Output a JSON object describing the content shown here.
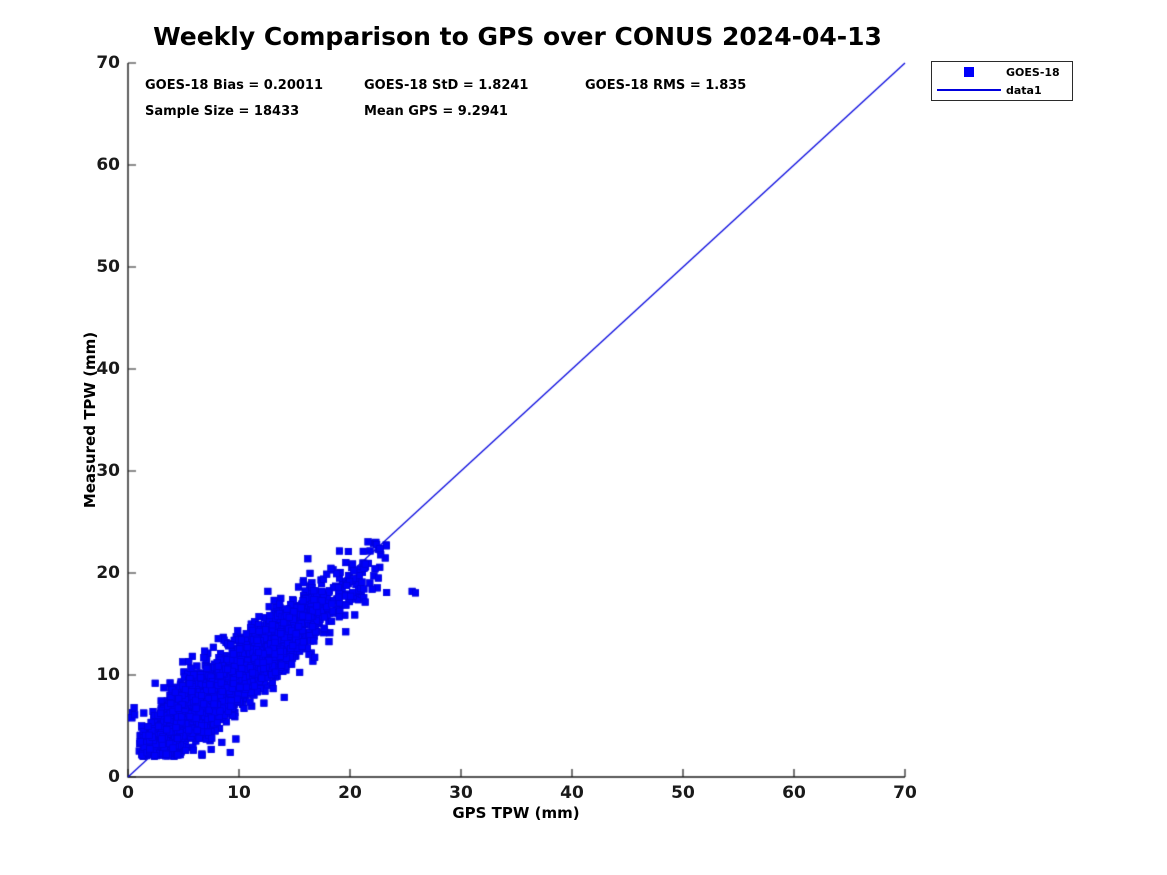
{
  "title": "Weekly Comparison to GPS over CONUS 2024-04-13",
  "annotations": {
    "bias": "GOES-18 Bias = 0.20011",
    "std": "GOES-18 StD = 1.8241",
    "rms": "GOES-18 RMS = 1.835",
    "sample_size": "Sample Size = 18433",
    "mean_gps": "Mean GPS = 9.2941"
  },
  "legend": {
    "items": [
      {
        "label": "GOES-18",
        "marker": "square",
        "color": "#0000fa"
      },
      {
        "label": "data1",
        "marker": "line",
        "color": "#0000dd"
      }
    ]
  },
  "colors": {
    "scatter_fill": "#0000fa",
    "scatter_edge": "#0000d0",
    "line": "#0000dd",
    "axis": "#1a1a1a",
    "background": "#ffffff"
  },
  "chart_data": {
    "type": "scatter",
    "title": "Weekly Comparison to GPS over CONUS 2024-04-13",
    "xlabel": "GPS TPW (mm)",
    "ylabel": "Measured TPW (mm)",
    "xlim": [
      0,
      70
    ],
    "ylim": [
      0,
      70
    ],
    "grid": false,
    "legend_position": "upper right outside plot",
    "xticks": [
      "0",
      "10",
      "20",
      "30",
      "40",
      "50",
      "60",
      "70"
    ],
    "yticks": [
      "0",
      "10",
      "20",
      "30",
      "40",
      "50",
      "60",
      "70"
    ],
    "stats": {
      "bias": 0.20011,
      "std": 1.8241,
      "rms": 1.835,
      "sample_size": 18433,
      "mean_gps": 9.2941
    },
    "series": [
      {
        "name": "GOES-18",
        "type": "scatter",
        "marker": "square",
        "color": "#0000fa",
        "marker_edge": "#0000d0",
        "marker_size_px": 7,
        "cluster": {
          "description": "Dense cloud of ~18433 points hugging the 1:1 line from (0,0) to (23,23)",
          "n_points_actual": 18433,
          "n_points_rendered": 3200,
          "seed": 20240413,
          "x_distribution": {
            "type": "gamma",
            "shape": 4,
            "scale": 2.32,
            "min": 0.4,
            "max": 23.3
          },
          "fit": {
            "slope": 0.85,
            "intercept": 1.7,
            "noise_std": 1.5,
            "wide_std": 2.3,
            "wide_frac": 0.12
          },
          "y_min": 2.0,
          "y_max": 23.1
        },
        "extra_points": [
          [
            25.6,
            18.2
          ],
          [
            25.9,
            18.05
          ],
          [
            0.4,
            6.3
          ],
          [
            0.55,
            6.8
          ],
          [
            0.35,
            5.8
          ],
          [
            0.6,
            6.1
          ],
          [
            16.2,
            21.4
          ],
          [
            12.6,
            18.2
          ],
          [
            22.4,
            22.8
          ],
          [
            22.7,
            22.4
          ]
        ]
      },
      {
        "name": "data1",
        "type": "line",
        "color": "#0000dd",
        "width": 1.2,
        "points": [
          [
            0,
            0
          ],
          [
            70,
            70
          ]
        ]
      }
    ]
  }
}
